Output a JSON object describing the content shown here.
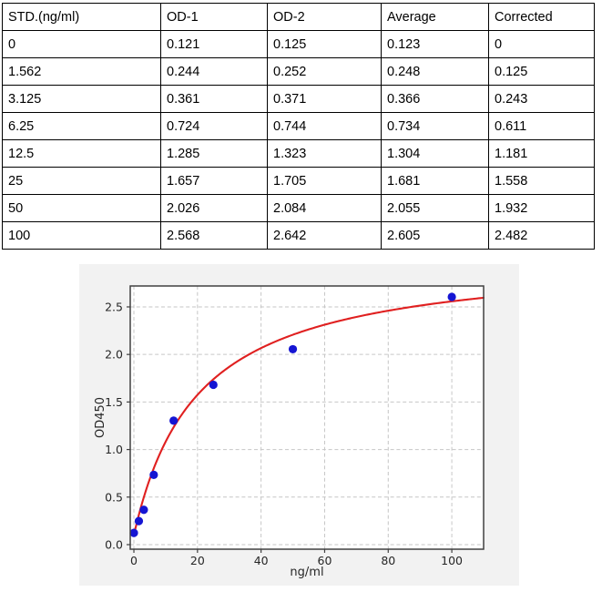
{
  "table": {
    "headers": [
      "STD.(ng/ml)",
      "OD-1",
      "OD-2",
      "Average",
      "Corrected"
    ],
    "rows": [
      [
        "0",
        "0.121",
        "0.125",
        "0.123",
        "0"
      ],
      [
        "1.562",
        "0.244",
        "0.252",
        "0.248",
        "0.125"
      ],
      [
        "3.125",
        "0.361",
        "0.371",
        "0.366",
        "0.243"
      ],
      [
        "6.25",
        "0.724",
        "0.744",
        "0.734",
        "0.611"
      ],
      [
        "12.5",
        "1.285",
        "1.323",
        "1.304",
        "1.181"
      ],
      [
        "25",
        "1.657",
        "1.705",
        "1.681",
        "1.558"
      ],
      [
        "50",
        "2.026",
        "2.084",
        "2.055",
        "1.932"
      ],
      [
        "100",
        "2.568",
        "2.642",
        "2.605",
        "2.482"
      ]
    ]
  },
  "chart_data": {
    "type": "scatter",
    "title": "",
    "xlabel": "ng/ml",
    "ylabel": "OD450",
    "xlim": [
      -1.15,
      110
    ],
    "ylim": [
      -0.048,
      2.72
    ],
    "x_ticks": [
      0,
      20,
      40,
      60,
      80,
      100
    ],
    "x_tick_labels": [
      "0",
      "20",
      "40",
      "60",
      "80",
      "100"
    ],
    "y_ticks": [
      0,
      0.5,
      1,
      1.5,
      2,
      2.5
    ],
    "y_tick_labels": [
      "0.0",
      "0.5",
      "1.0",
      "1.5",
      "2.0",
      "2.5"
    ],
    "grid": "dashed",
    "legend": "none",
    "points": {
      "x": [
        0,
        1.562,
        3.125,
        6.25,
        12.5,
        25,
        50,
        100
      ],
      "y": [
        0.123,
        0.248,
        0.366,
        0.734,
        1.304,
        1.681,
        2.055,
        2.605
      ]
    },
    "fit_curve": {
      "model": "y = y0 + a*x/(b+x)",
      "y0": 0.1,
      "a": 2.95,
      "b": 20.0,
      "x_start": 0,
      "x_end": 110
    },
    "colors": {
      "point": "#1515d3",
      "curve": "#e02020",
      "grid": "#c6c6c6",
      "spine": "#404040",
      "text": "#262626",
      "figure_bg": "#f2f2f2",
      "plot_bg": "#ffffff"
    }
  }
}
